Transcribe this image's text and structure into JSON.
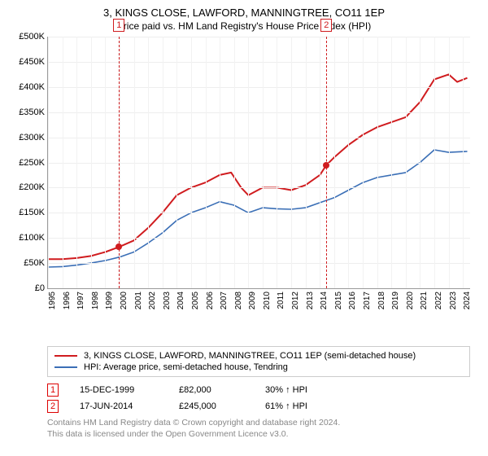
{
  "title": {
    "line1": "3, KINGS CLOSE, LAWFORD, MANNINGTREE, CO11 1EP",
    "line2": "Price paid vs. HM Land Registry's House Price Index (HPI)"
  },
  "chart": {
    "type": "line",
    "background_color": "#ffffff",
    "grid_color": "#eeeeee",
    "axis_color": "#999999",
    "x": {
      "min": 1995,
      "max": 2024.5,
      "ticks": [
        1995,
        1996,
        1997,
        1998,
        1999,
        2000,
        2001,
        2002,
        2003,
        2004,
        2005,
        2006,
        2007,
        2008,
        2009,
        2010,
        2011,
        2012,
        2013,
        2014,
        2015,
        2016,
        2017,
        2018,
        2019,
        2020,
        2021,
        2022,
        2023,
        2024
      ],
      "labels": [
        "1995",
        "1996",
        "1997",
        "1998",
        "1999",
        "2000",
        "2001",
        "2002",
        "2003",
        "2004",
        "2005",
        "2006",
        "2007",
        "2008",
        "2009",
        "2010",
        "2011",
        "2012",
        "2013",
        "2014",
        "2015",
        "2016",
        "2017",
        "2018",
        "2019",
        "2020",
        "2021",
        "2022",
        "2023",
        "2024"
      ],
      "label_fontsize": 10
    },
    "y": {
      "min": 0,
      "max": 500000,
      "ticks": [
        0,
        50000,
        100000,
        150000,
        200000,
        250000,
        300000,
        350000,
        400000,
        450000,
        500000
      ],
      "labels": [
        "£0",
        "£50K",
        "£100K",
        "£150K",
        "£200K",
        "£250K",
        "£300K",
        "£350K",
        "£400K",
        "£450K",
        "£500K"
      ],
      "label_fontsize": 11
    },
    "series": [
      {
        "id": "price_paid",
        "color": "#d01c1f",
        "line_width": 2,
        "points": [
          [
            1995,
            58000
          ],
          [
            1996,
            58000
          ],
          [
            1997,
            60000
          ],
          [
            1998,
            64000
          ],
          [
            1999,
            72000
          ],
          [
            1999.96,
            82000
          ],
          [
            2001,
            95000
          ],
          [
            2002,
            120000
          ],
          [
            2003,
            150000
          ],
          [
            2004,
            185000
          ],
          [
            2005,
            200000
          ],
          [
            2006,
            210000
          ],
          [
            2007,
            225000
          ],
          [
            2007.8,
            230000
          ],
          [
            2008.5,
            200000
          ],
          [
            2009,
            185000
          ],
          [
            2010,
            200000
          ],
          [
            2011,
            200000
          ],
          [
            2012,
            195000
          ],
          [
            2013,
            205000
          ],
          [
            2014,
            225000
          ],
          [
            2014.46,
            245000
          ],
          [
            2015,
            260000
          ],
          [
            2016,
            285000
          ],
          [
            2017,
            305000
          ],
          [
            2018,
            320000
          ],
          [
            2019,
            330000
          ],
          [
            2020,
            340000
          ],
          [
            2021,
            370000
          ],
          [
            2022,
            415000
          ],
          [
            2023,
            425000
          ],
          [
            2023.6,
            410000
          ],
          [
            2024.3,
            418000
          ]
        ]
      },
      {
        "id": "hpi",
        "color": "#3b6fb6",
        "line_width": 1.6,
        "points": [
          [
            1995,
            42000
          ],
          [
            1996,
            43000
          ],
          [
            1997,
            46000
          ],
          [
            1998,
            50000
          ],
          [
            1999,
            55000
          ],
          [
            2000,
            62000
          ],
          [
            2001,
            72000
          ],
          [
            2002,
            90000
          ],
          [
            2003,
            110000
          ],
          [
            2004,
            135000
          ],
          [
            2005,
            150000
          ],
          [
            2006,
            160000
          ],
          [
            2007,
            172000
          ],
          [
            2008,
            165000
          ],
          [
            2009,
            150000
          ],
          [
            2010,
            160000
          ],
          [
            2011,
            158000
          ],
          [
            2012,
            157000
          ],
          [
            2013,
            160000
          ],
          [
            2014,
            170000
          ],
          [
            2015,
            180000
          ],
          [
            2016,
            195000
          ],
          [
            2017,
            210000
          ],
          [
            2018,
            220000
          ],
          [
            2019,
            225000
          ],
          [
            2020,
            230000
          ],
          [
            2021,
            250000
          ],
          [
            2022,
            275000
          ],
          [
            2023,
            270000
          ],
          [
            2024.3,
            272000
          ]
        ]
      }
    ],
    "markers": [
      {
        "n": "1",
        "x": 1999.96,
        "y": 82000,
        "color": "#d01c1f"
      },
      {
        "n": "2",
        "x": 2014.46,
        "y": 245000,
        "color": "#d01c1f"
      }
    ]
  },
  "legend": {
    "items": [
      {
        "color": "#d01c1f",
        "label": "3, KINGS CLOSE, LAWFORD, MANNINGTREE, CO11 1EP (semi-detached house)"
      },
      {
        "color": "#3b6fb6",
        "label": "HPI: Average price, semi-detached house, Tendring"
      }
    ]
  },
  "events": [
    {
      "n": "1",
      "date": "15-DEC-1999",
      "price": "£82,000",
      "delta": "30% ↑ HPI"
    },
    {
      "n": "2",
      "date": "17-JUN-2014",
      "price": "£245,000",
      "delta": "61% ↑ HPI"
    }
  ],
  "footnote": {
    "line1": "Contains HM Land Registry data © Crown copyright and database right 2024.",
    "line2": "This data is licensed under the Open Government Licence v3.0."
  }
}
